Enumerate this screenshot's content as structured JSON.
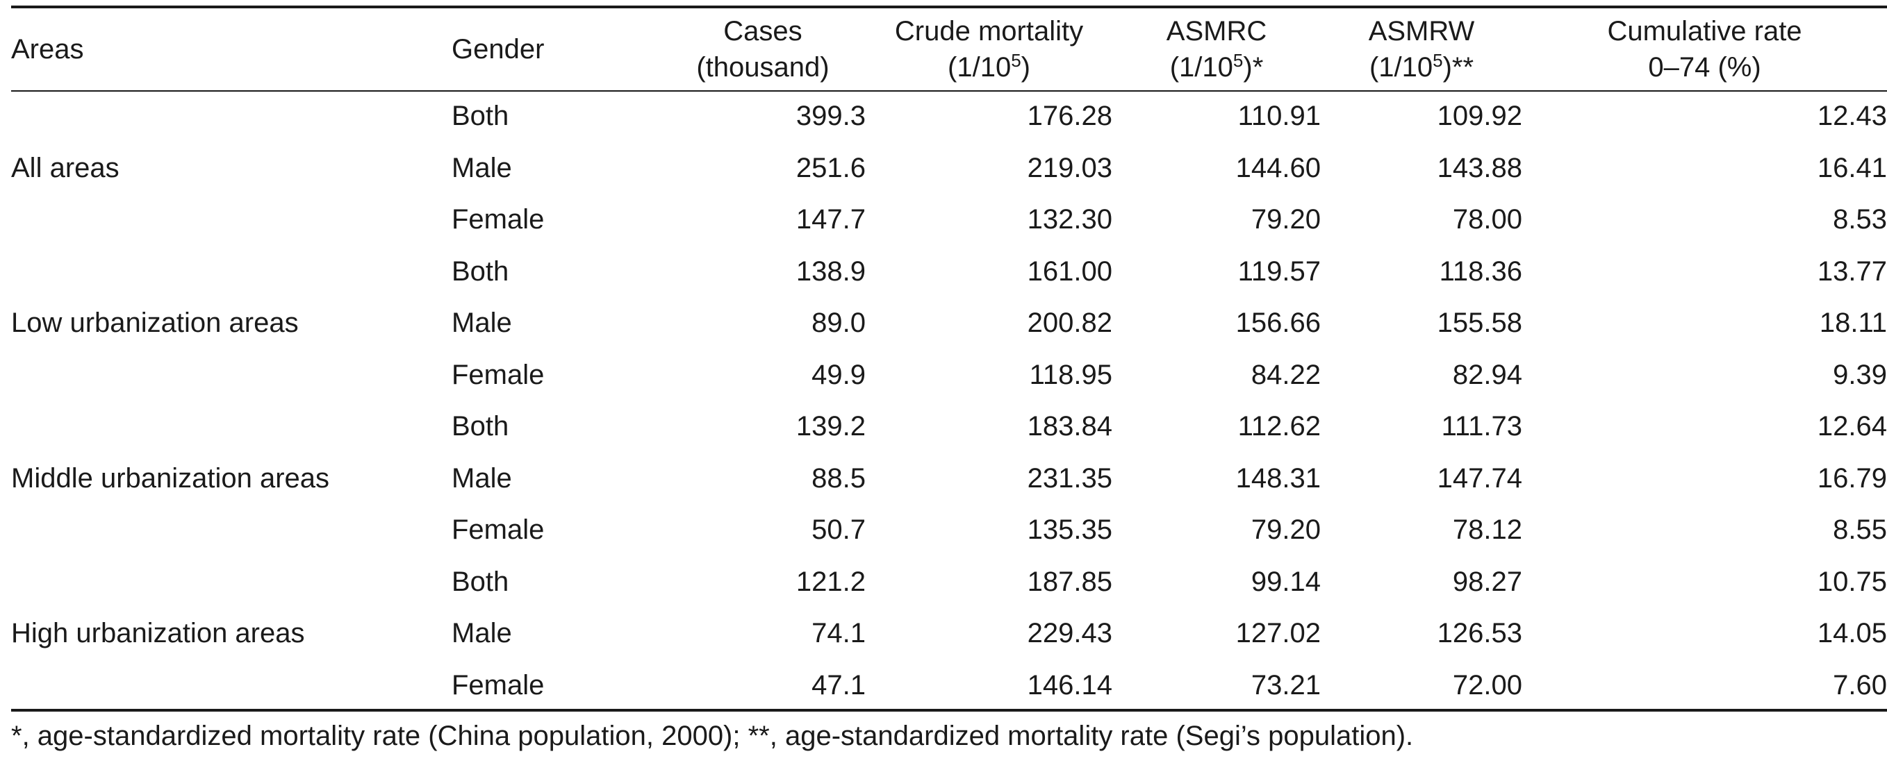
{
  "table": {
    "headers": {
      "areas": "Areas",
      "gender": "Gender",
      "cases_l1": "Cases",
      "cases_l2": "(thousand)",
      "crude_l1": "Crude mortality",
      "crude_l2a": "(1/10",
      "crude_sup": "5",
      "crude_l2b": ")",
      "asmrc_l1": "ASMRC",
      "asmrc_l2a": "(1/10",
      "asmrc_sup": "5",
      "asmrc_l2b": ")*",
      "asmrw_l1": "ASMRW",
      "asmrw_l2a": "(1/10",
      "asmrw_sup": "5",
      "asmrw_l2b": ")**",
      "cum_l1": "Cumulative rate",
      "cum_l2": "0–74 (%)"
    },
    "groups": [
      {
        "area": "All areas",
        "rows": [
          {
            "gender": "Both",
            "cases": "399.3",
            "crude": "176.28",
            "asmrc": "110.91",
            "asmrw": "109.92",
            "cum": "12.43"
          },
          {
            "gender": "Male",
            "cases": "251.6",
            "crude": "219.03",
            "asmrc": "144.60",
            "asmrw": "143.88",
            "cum": "16.41"
          },
          {
            "gender": "Female",
            "cases": "147.7",
            "crude": "132.30",
            "asmrc": "79.20",
            "asmrw": "78.00",
            "cum": "8.53"
          }
        ]
      },
      {
        "area": "Low urbanization areas",
        "rows": [
          {
            "gender": "Both",
            "cases": "138.9",
            "crude": "161.00",
            "asmrc": "119.57",
            "asmrw": "118.36",
            "cum": "13.77"
          },
          {
            "gender": "Male",
            "cases": "89.0",
            "crude": "200.82",
            "asmrc": "156.66",
            "asmrw": "155.58",
            "cum": "18.11"
          },
          {
            "gender": "Female",
            "cases": "49.9",
            "crude": "118.95",
            "asmrc": "84.22",
            "asmrw": "82.94",
            "cum": "9.39"
          }
        ]
      },
      {
        "area": "Middle urbanization areas",
        "rows": [
          {
            "gender": "Both",
            "cases": "139.2",
            "crude": "183.84",
            "asmrc": "112.62",
            "asmrw": "111.73",
            "cum": "12.64"
          },
          {
            "gender": "Male",
            "cases": "88.5",
            "crude": "231.35",
            "asmrc": "148.31",
            "asmrw": "147.74",
            "cum": "16.79"
          },
          {
            "gender": "Female",
            "cases": "50.7",
            "crude": "135.35",
            "asmrc": "79.20",
            "asmrw": "78.12",
            "cum": "8.55"
          }
        ]
      },
      {
        "area": "High urbanization areas",
        "rows": [
          {
            "gender": "Both",
            "cases": "121.2",
            "crude": "187.85",
            "asmrc": "99.14",
            "asmrw": "98.27",
            "cum": "10.75"
          },
          {
            "gender": "Male",
            "cases": "74.1",
            "crude": "229.43",
            "asmrc": "127.02",
            "asmrw": "126.53",
            "cum": "14.05"
          },
          {
            "gender": "Female",
            "cases": "47.1",
            "crude": "146.14",
            "asmrc": "73.21",
            "asmrw": "72.00",
            "cum": "7.60"
          }
        ]
      }
    ]
  },
  "footnote": "*, age-standardized mortality rate (China population, 2000); **, age-standardized mortality rate (Segi’s population)."
}
